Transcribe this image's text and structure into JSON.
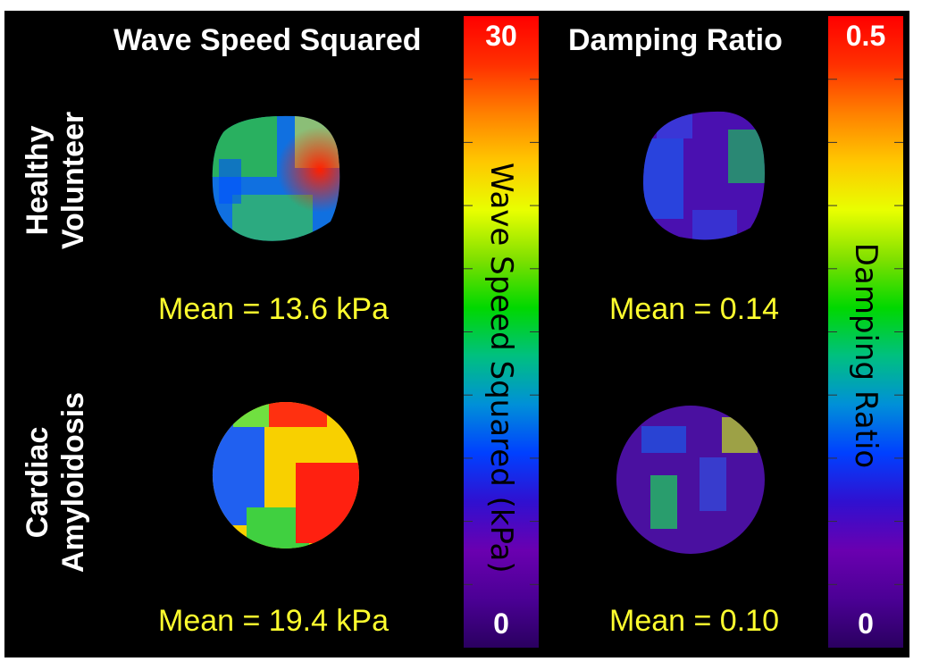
{
  "columns": {
    "wave_speed_title": "Wave Speed Squared",
    "damping_title": "Damping Ratio"
  },
  "rows": {
    "healthy_line1": "Healthy",
    "healthy_line2": "Volunteer",
    "amyloid_line1": "Cardiac",
    "amyloid_line2": "Amyloidosis"
  },
  "means": {
    "healthy_wave": "Mean = 13.6 kPa",
    "healthy_damping": "Mean = 0.14",
    "amyloid_wave": "Mean = 19.4 kPa",
    "amyloid_damping": "Mean = 0.10"
  },
  "colorbars": {
    "wave": {
      "label": "Wave Speed Squared  (kPa)",
      "max": "30",
      "min": "0"
    },
    "damping": {
      "label": "Damping Ratio",
      "max": "0.5",
      "min": "0"
    }
  },
  "colormap": [
    "#2a0060",
    "#4b0095",
    "#6a00b0",
    "#3010d0",
    "#0040ff",
    "#0090d8",
    "#00c080",
    "#00d800",
    "#80e000",
    "#e8ff00",
    "#ffc800",
    "#ff8000",
    "#ff3000",
    "#ff0000"
  ]
}
